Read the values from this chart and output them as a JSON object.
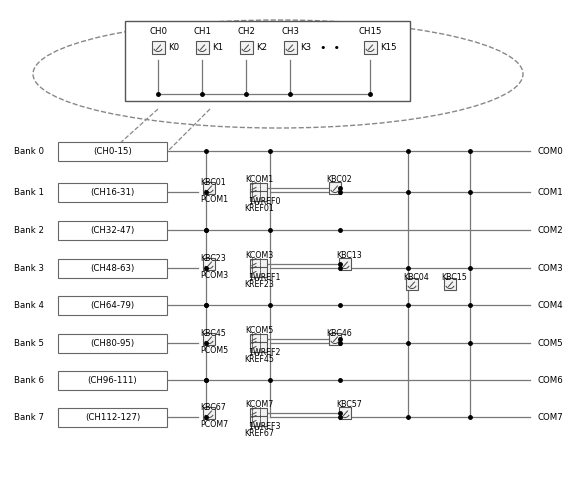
{
  "fig_width": 5.37,
  "fig_height": 4.83,
  "bg_color": "#ffffff",
  "lc": "#777777",
  "dc": "#000000",
  "banks": [
    "Bank 0",
    "Bank 1",
    "Bank 2",
    "Bank 3",
    "Bank 4",
    "Bank 5",
    "Bank 6",
    "Bank 7"
  ],
  "bank_labels": [
    "(CH0-15)",
    "(CH16-31)",
    "(CH32-47)",
    "(CH48-63)",
    "(CH64-79)",
    "(CH80-95)",
    "(CH96-111)",
    "(CH112-127)"
  ],
  "com_labels": [
    "COM0",
    "COM1",
    "COM2",
    "COM3",
    "COM4",
    "COM5",
    "COM6",
    "COM7"
  ],
  "top_channels": [
    "CH0",
    "CH1",
    "CH2",
    "CH3",
    "CH15"
  ],
  "top_switches": [
    "K0",
    "K1",
    "K2",
    "K3",
    "K15"
  ]
}
